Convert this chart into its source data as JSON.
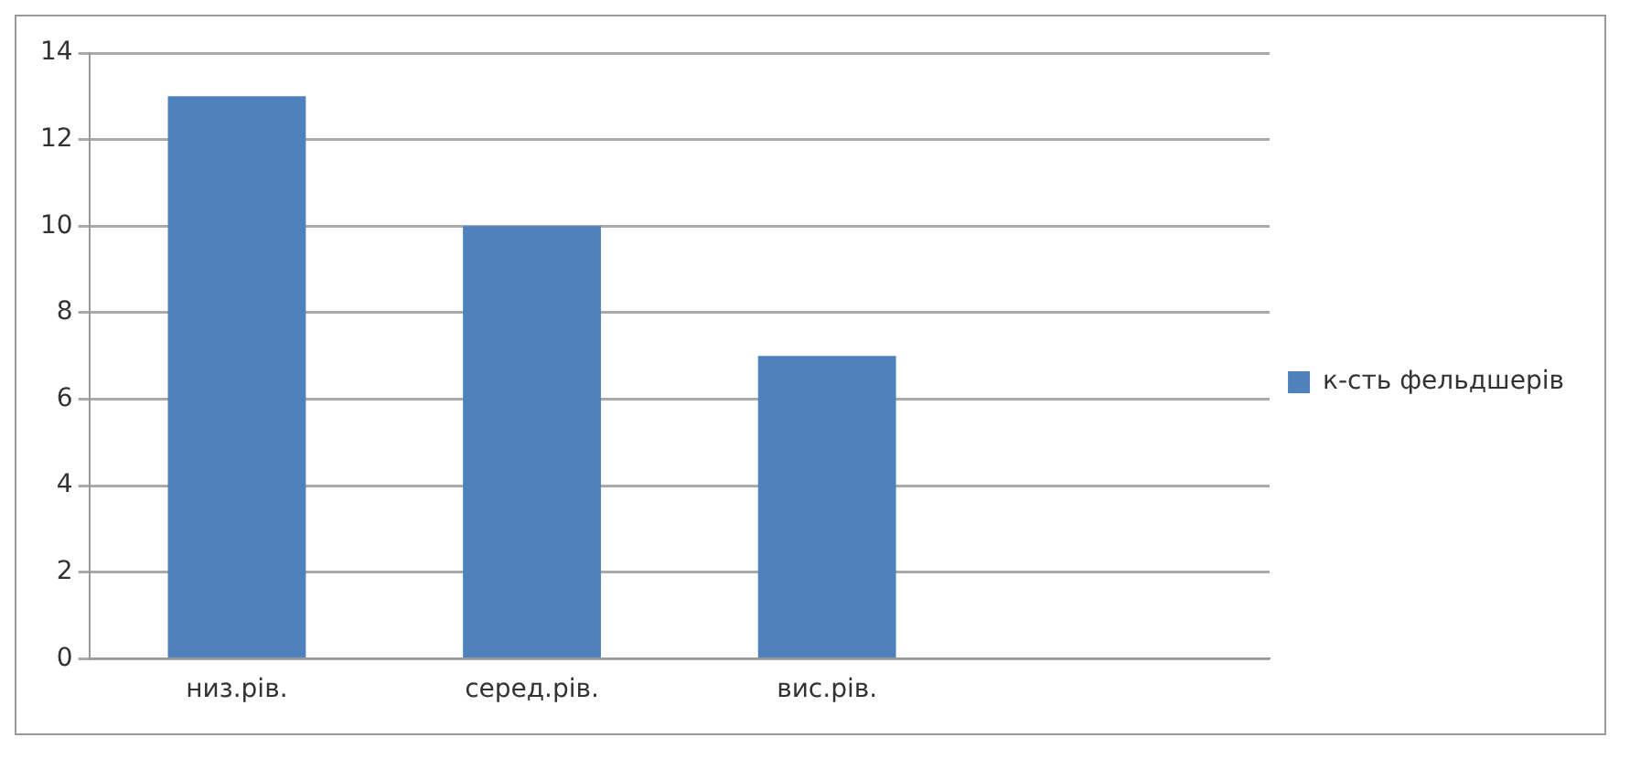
{
  "chart_data": {
    "type": "bar",
    "categories": [
      "низ.рів.",
      "серед.рів.",
      "вис.рів.",
      null
    ],
    "series": [
      {
        "name": "к-сть фельдшерів",
        "color": "#4f81bd",
        "values": [
          13,
          10,
          7,
          null
        ]
      }
    ],
    "ylim": [
      0,
      14
    ],
    "yticks": [
      0,
      2,
      4,
      6,
      8,
      10,
      12,
      14
    ],
    "grid": "y",
    "legend": "right"
  }
}
